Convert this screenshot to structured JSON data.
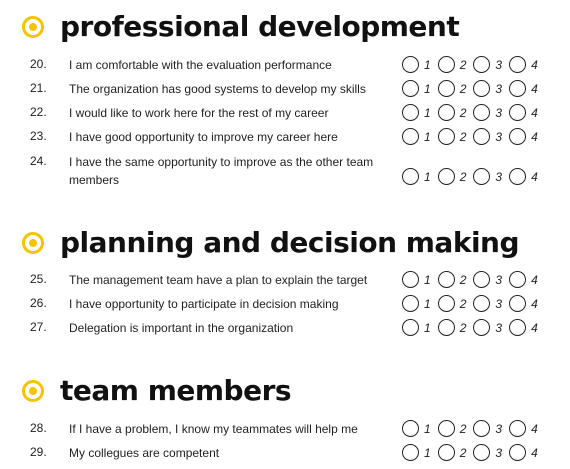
{
  "accent_color": "#f5c400",
  "sections": [
    {
      "title": "professional development",
      "icon": "target-icon",
      "items": [
        {
          "num": "20.",
          "text": "I am comfortable with the evaluation performance"
        },
        {
          "num": "21.",
          "text": "The organization has good systems to develop my skills"
        },
        {
          "num": "22.",
          "text": "I would like to work here for the rest of my career"
        },
        {
          "num": "23.",
          "text": "I have good opportunity to improve my career here"
        },
        {
          "num": "24.",
          "text": "I have the same opportunity to improve as the other team members"
        }
      ]
    },
    {
      "title": "planning and decision making",
      "icon": "target-icon",
      "items": [
        {
          "num": "25.",
          "text": "The management team have a plan to explain the target"
        },
        {
          "num": "26.",
          "text": "I have opportunity to participate in decision making"
        },
        {
          "num": "27.",
          "text": "Delegation is important in the organization"
        }
      ]
    },
    {
      "title": "team members",
      "icon": "target-icon",
      "items": [
        {
          "num": "28.",
          "text": "If I have a problem, I know my teammates will help me"
        },
        {
          "num": "29.",
          "text": "My collegues are competent"
        }
      ]
    }
  ],
  "scale_options": [
    "1",
    "2",
    "3",
    "4"
  ]
}
